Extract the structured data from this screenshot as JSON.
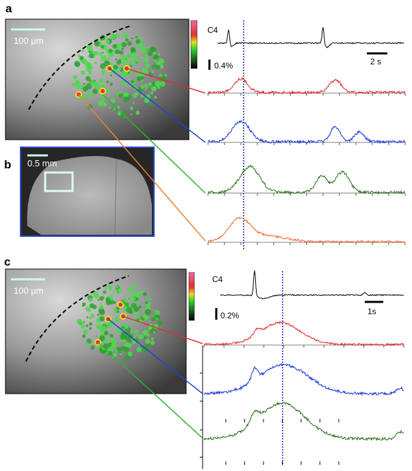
{
  "panel_a": {
    "label": "a",
    "scale_bar": "100 µm",
    "trace_label": "C4",
    "amplitude_bar": "0.4%",
    "time_bar": "2 s"
  },
  "panel_b": {
    "label": "b",
    "scale_bar": "0.5 mm"
  },
  "panel_c": {
    "label": "c",
    "scale_bar": "100 µm",
    "trace_label": "C4",
    "amplitude_bar": "0.2%",
    "time_bar": "1s"
  }
}
